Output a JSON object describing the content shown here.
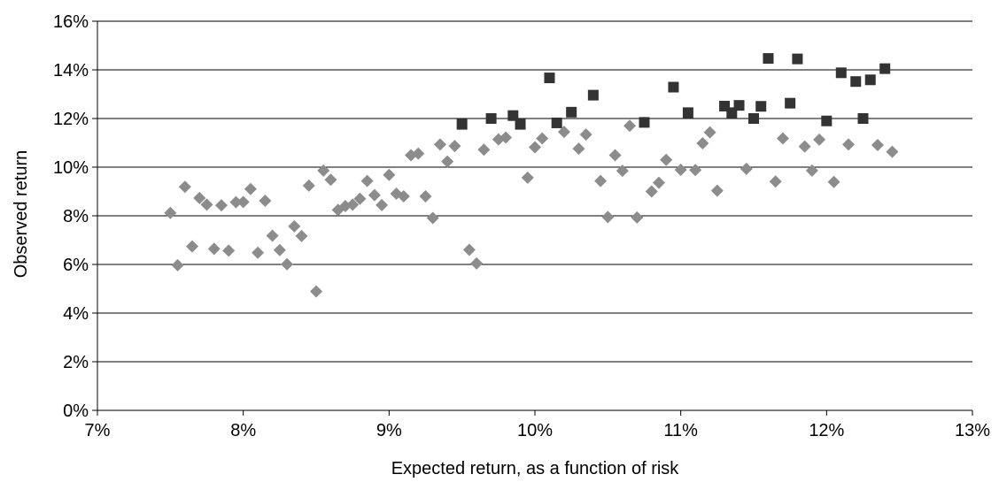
{
  "chart_data": {
    "type": "scatter",
    "title": "",
    "xlabel": "Expected return, as a function of risk",
    "ylabel": "Observed return",
    "xlim": [
      0.07,
      0.13
    ],
    "ylim": [
      0.0,
      0.16
    ],
    "x_ticks": [
      0.07,
      0.08,
      0.09,
      0.1,
      0.11,
      0.12,
      0.13
    ],
    "x_tick_labels": [
      "7%",
      "8%",
      "9%",
      "10%",
      "11%",
      "12%",
      "13%"
    ],
    "y_ticks": [
      0.0,
      0.02,
      0.04,
      0.06,
      0.08,
      0.1,
      0.12,
      0.14,
      0.16
    ],
    "y_tick_labels": [
      "0%",
      "2%",
      "4%",
      "6%",
      "8%",
      "10%",
      "12%",
      "14%",
      "16%"
    ],
    "grid": "horizontal",
    "legend": "none",
    "colors": {
      "series1": "#8c8c8c",
      "series2": "#333333",
      "grid": "#000000"
    },
    "series": [
      {
        "marker": "diamond",
        "color": "#8c8c8c",
        "points": [
          [
            0.075,
            0.0812
          ],
          [
            0.0755,
            0.0597
          ],
          [
            0.076,
            0.0919
          ],
          [
            0.0765,
            0.0674
          ],
          [
            0.077,
            0.0873
          ],
          [
            0.0775,
            0.0846
          ],
          [
            0.078,
            0.0664
          ],
          [
            0.0785,
            0.0843
          ],
          [
            0.079,
            0.0657
          ],
          [
            0.0795,
            0.0856
          ],
          [
            0.08,
            0.0857
          ],
          [
            0.0805,
            0.091
          ],
          [
            0.081,
            0.0648
          ],
          [
            0.0815,
            0.0862
          ],
          [
            0.082,
            0.0718
          ],
          [
            0.0825,
            0.0659
          ],
          [
            0.083,
            0.0601
          ],
          [
            0.0835,
            0.0757
          ],
          [
            0.084,
            0.0717
          ],
          [
            0.0845,
            0.0924
          ],
          [
            0.085,
            0.0489
          ],
          [
            0.0855,
            0.0986
          ],
          [
            0.086,
            0.0948
          ],
          [
            0.0865,
            0.0824
          ],
          [
            0.087,
            0.084
          ],
          [
            0.0875,
            0.0846
          ],
          [
            0.088,
            0.087
          ],
          [
            0.0885,
            0.0943
          ],
          [
            0.089,
            0.0885
          ],
          [
            0.0895,
            0.0844
          ],
          [
            0.09,
            0.0968
          ],
          [
            0.0905,
            0.0891
          ],
          [
            0.091,
            0.088
          ],
          [
            0.0915,
            0.1049
          ],
          [
            0.092,
            0.1056
          ],
          [
            0.0925,
            0.088
          ],
          [
            0.093,
            0.0791
          ],
          [
            0.0935,
            0.1093
          ],
          [
            0.094,
            0.1023
          ],
          [
            0.0945,
            0.1087
          ],
          [
            0.0955,
            0.066
          ],
          [
            0.096,
            0.0604
          ],
          [
            0.0965,
            0.1072
          ],
          [
            0.0975,
            0.1114
          ],
          [
            0.098,
            0.1122
          ],
          [
            0.0995,
            0.0957
          ],
          [
            0.1,
            0.1082
          ],
          [
            0.1005,
            0.1118
          ],
          [
            0.102,
            0.1145
          ],
          [
            0.103,
            0.1076
          ],
          [
            0.1035,
            0.1134
          ],
          [
            0.1045,
            0.0943
          ],
          [
            0.105,
            0.0795
          ],
          [
            0.1055,
            0.1049
          ],
          [
            0.106,
            0.0985
          ],
          [
            0.1065,
            0.117
          ],
          [
            0.107,
            0.0793
          ],
          [
            0.108,
            0.09
          ],
          [
            0.1085,
            0.0936
          ],
          [
            0.109,
            0.103
          ],
          [
            0.11,
            0.0989
          ],
          [
            0.111,
            0.0988
          ],
          [
            0.1115,
            0.1098
          ],
          [
            0.112,
            0.1143
          ],
          [
            0.1125,
            0.0903
          ],
          [
            0.1145,
            0.0993
          ],
          [
            0.1165,
            0.0941
          ],
          [
            0.117,
            0.1118
          ],
          [
            0.1185,
            0.1085
          ],
          [
            0.119,
            0.0986
          ],
          [
            0.1195,
            0.1113
          ],
          [
            0.1205,
            0.0939
          ],
          [
            0.1215,
            0.1093
          ],
          [
            0.1235,
            0.1091
          ],
          [
            0.1245,
            0.1063
          ]
        ]
      },
      {
        "marker": "square",
        "color": "#333333",
        "points": [
          [
            0.095,
            0.1176
          ],
          [
            0.097,
            0.12
          ],
          [
            0.0985,
            0.1212
          ],
          [
            0.099,
            0.1176
          ],
          [
            0.101,
            0.1367
          ],
          [
            0.1015,
            0.1182
          ],
          [
            0.1025,
            0.1226
          ],
          [
            0.104,
            0.1296
          ],
          [
            0.1075,
            0.1184
          ],
          [
            0.1095,
            0.1329
          ],
          [
            0.1105,
            0.1224
          ],
          [
            0.113,
            0.1251
          ],
          [
            0.1135,
            0.1224
          ],
          [
            0.114,
            0.1254
          ],
          [
            0.115,
            0.12
          ],
          [
            0.1155,
            0.125
          ],
          [
            0.116,
            0.1447
          ],
          [
            0.1175,
            0.1263
          ],
          [
            0.118,
            0.1445
          ],
          [
            0.12,
            0.119
          ],
          [
            0.121,
            0.1388
          ],
          [
            0.122,
            0.1352
          ],
          [
            0.1225,
            0.12
          ],
          [
            0.123,
            0.1359
          ],
          [
            0.124,
            0.1405
          ]
        ]
      }
    ]
  }
}
